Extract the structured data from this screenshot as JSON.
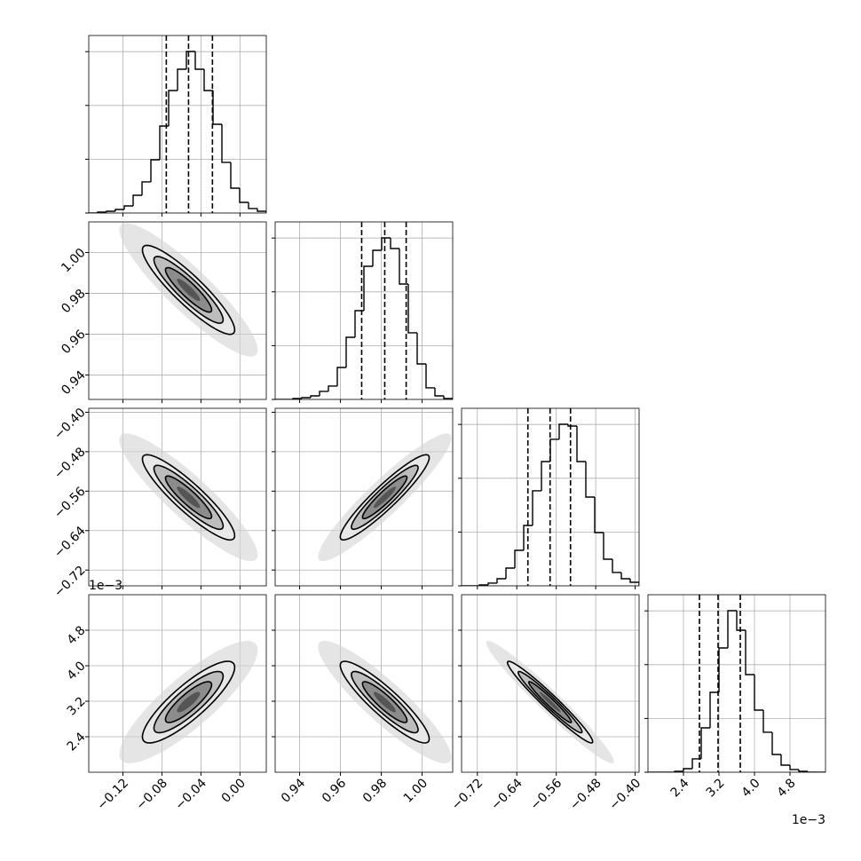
{
  "chart_data": {
    "type": "corner",
    "color": "#000000",
    "quantile_color": "#000000",
    "grid": true,
    "grid_color": "#b0b0b0",
    "offset_label": "1e−3",
    "hist_ylim": [
      0,
      3300
    ],
    "hist_yticks": [
      0,
      1000,
      2000,
      3000
    ],
    "levels": [
      0.5,
      1,
      1.5,
      2
    ],
    "level_fills": [
      "#555555",
      "#8c8c8c",
      "#bdbdbd",
      "#e8e8e8"
    ],
    "scatter_level": 3,
    "scatter_color": "#d4d4d4",
    "correlations": [
      [
        -0.9
      ],
      [
        -0.9,
        0.93
      ],
      [
        0.85,
        -0.9,
        -0.97
      ]
    ],
    "parameters": [
      {
        "xlim": [
          -0.155,
          0.027
        ],
        "ticks": [
          {
            "value": -0.12,
            "label": "−0.12"
          },
          {
            "value": -0.08,
            "label": "−0.08"
          },
          {
            "value": -0.04,
            "label": "−0.04"
          },
          {
            "value": 0,
            "label": "0.00"
          }
        ],
        "bins": [
          -0.155,
          -0.1459,
          -0.1368,
          -0.1277,
          -0.1186,
          -0.1095,
          -0.1004,
          -0.0913,
          -0.0822,
          -0.0731,
          -0.064,
          -0.0549,
          -0.0458,
          -0.0367,
          -0.0276,
          -0.0185,
          -0.0094,
          -0.0003,
          0.0088,
          0.0179,
          0.027
        ],
        "counts": [
          0,
          17,
          33,
          66,
          132,
          330,
          578,
          990,
          1617,
          2277,
          2673,
          3003,
          2673,
          2277,
          1650,
          941,
          462,
          198,
          83,
          33
        ],
        "quantiles": [
          -0.0755,
          -0.0527,
          -0.0282
        ]
      },
      {
        "xlim": [
          0.928,
          1.015
        ],
        "ticks": [
          0.94,
          0.96,
          0.98,
          {
            "value": 1,
            "label": "1.00"
          }
        ],
        "bins": [
          0.928,
          0.93235,
          0.9367,
          0.94105,
          0.9454,
          0.94975,
          0.9541,
          0.95845,
          0.9628,
          0.96715,
          0.9715,
          0.97585,
          0.9802,
          0.98455,
          0.9889,
          0.99325,
          0.9976,
          1.00195,
          1.0063,
          1.01065,
          1.015
        ],
        "counts": [
          0,
          0,
          17,
          33,
          66,
          149,
          248,
          594,
          1155,
          1650,
          2475,
          2772,
          3003,
          2805,
          2145,
          1238,
          660,
          215,
          66,
          17
        ],
        "quantiles": [
          0.9704,
          0.9817,
          0.9922
        ]
      },
      {
        "xlim": [
          -0.752,
          -0.392
        ],
        "ticks": [
          {
            "value": -0.72,
            "label": "−0.72"
          },
          {
            "value": -0.64,
            "label": "−0.64"
          },
          {
            "value": -0.56,
            "label": "−0.56"
          },
          {
            "value": -0.48,
            "label": "−0.48"
          },
          {
            "value": -0.4,
            "label": "−0.40"
          }
        ],
        "bins": [
          -0.752,
          -0.734,
          -0.716,
          -0.698,
          -0.68,
          -0.662,
          -0.644,
          -0.626,
          -0.608,
          -0.59,
          -0.572,
          -0.554,
          -0.536,
          -0.518,
          -0.5,
          -0.482,
          -0.464,
          -0.446,
          -0.428,
          -0.41,
          -0.392
        ],
        "counts": [
          0,
          0,
          17,
          50,
          132,
          330,
          660,
          1122,
          1766,
          2310,
          2723,
          3003,
          2970,
          2310,
          1650,
          990,
          495,
          248,
          132,
          66
        ],
        "quantiles": [
          -0.6175,
          -0.5725,
          -0.5311
        ]
      },
      {
        "xlim": [
          1.6,
          5.6
        ],
        "ticks": [
          2.4,
          3.2,
          {
            "value": 4,
            "label": "4.0"
          },
          4.8
        ],
        "bins": [
          1.6,
          1.8,
          2.0,
          2.2,
          2.4,
          2.6,
          2.8,
          3.0,
          3.2,
          3.4,
          3.6,
          3.8,
          4.0,
          4.2,
          4.4,
          4.6,
          4.8,
          5.0,
          5.2,
          5.4,
          5.6
        ],
        "counts": [
          0,
          0,
          0,
          17,
          66,
          248,
          825,
          1485,
          2310,
          3003,
          2640,
          1815,
          1155,
          743,
          330,
          132,
          50,
          17,
          0,
          0
        ],
        "quantiles": [
          2.76,
          3.18,
          3.68
        ]
      }
    ]
  }
}
